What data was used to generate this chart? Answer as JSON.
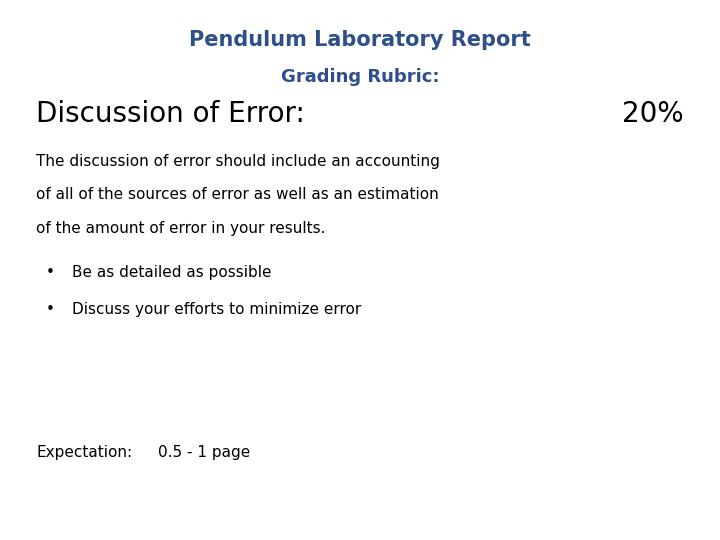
{
  "title": "Pendulum Laboratory Report",
  "subtitle": "Grading Rubric:",
  "section_title": "Discussion of Error:",
  "section_percent": "20%",
  "body_line1": "The discussion of error should include an accounting",
  "body_line2": "of all of the sources of error as well as an estimation",
  "body_line3": "of the amount of error in your results.",
  "bullets": [
    "Be as detailed as possible",
    "Discuss your efforts to minimize error"
  ],
  "expectation_label": "Expectation:",
  "expectation_value": "0.5 - 1 page",
  "title_color": "#2E4E8C",
  "subtitle_color": "#2E4E8C",
  "body_color": "#000000",
  "background_color": "#ffffff",
  "title_fontsize": 15,
  "subtitle_fontsize": 13,
  "section_title_fontsize": 20,
  "body_fontsize": 11,
  "bullet_fontsize": 11,
  "expectation_fontsize": 11
}
